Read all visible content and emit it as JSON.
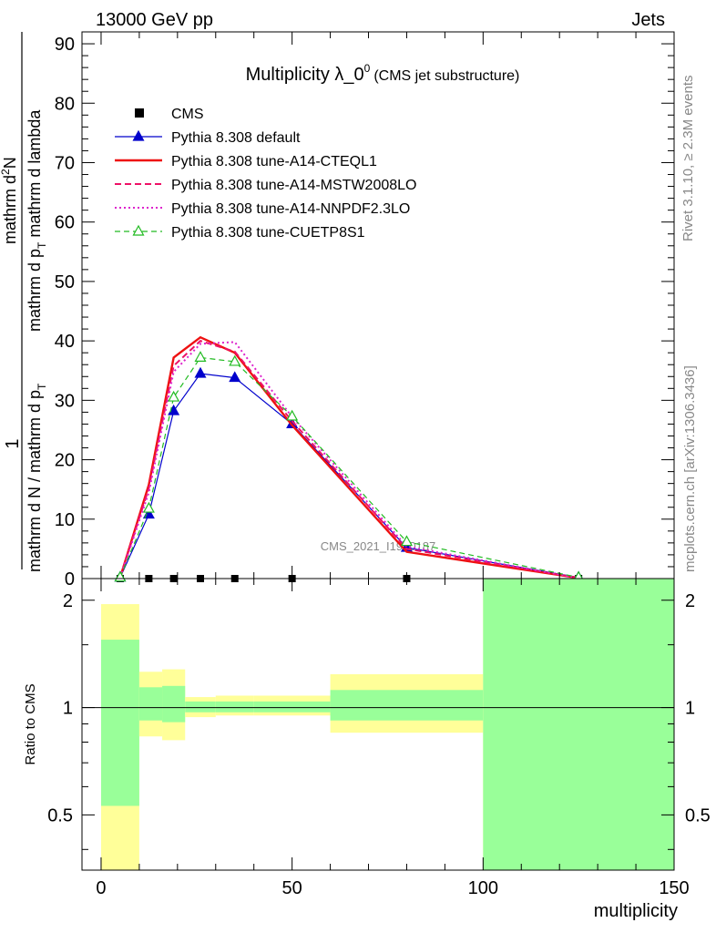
{
  "header": {
    "left": "13000 GeV pp",
    "right": "Jets"
  },
  "side_labels": {
    "rivet": "Rivet 3.1.10, ≥ 2.3M events",
    "mcplots": "mcplots.cern.ch [arXiv:1306.3436]"
  },
  "watermark": "CMS_2021_I1920187",
  "chart_data": [
    {
      "type": "line",
      "title": "Multiplicity λ_0",
      "title_sup": "0",
      "subtitle": "(CMS jet substructure)",
      "ylabel_top": "1",
      "ylabel_den": "mathrm d N / mathrm d p",
      "ylabel_den_sub": "T",
      "ylabel_den_tail": "mathrm d lambda",
      "ylabel_num": "mathrm d",
      "ylabel_num_sup": "2",
      "ylabel_num_tail": "N",
      "ylabel_right": "mathrm d p",
      "ylabel_right_sub": "T",
      "xlim": [
        -5,
        150
      ],
      "ylim": [
        0,
        92
      ],
      "yticks": [
        "0",
        "10",
        "20",
        "30",
        "40",
        "50",
        "60",
        "70",
        "80",
        "90"
      ],
      "series": [
        {
          "name": "CMS",
          "color": "#000000",
          "style": "marker-square",
          "x": [
            5,
            12.5,
            19,
            26,
            35,
            50,
            80,
            125
          ],
          "y": [
            0,
            0,
            0,
            0,
            0,
            0,
            0,
            0
          ]
        },
        {
          "name": "Pythia 8.308 default",
          "color": "#0000cc",
          "style": "solid-triangle",
          "x": [
            5,
            12.5,
            19,
            26,
            35,
            50,
            80,
            125
          ],
          "y": [
            0.2,
            10.8,
            28.2,
            34.5,
            33.8,
            26.0,
            5.2,
            0.2
          ]
        },
        {
          "name": "Pythia 8.308 tune-A14-CTEQL1",
          "color": "#ee1111",
          "style": "solid-thick",
          "x": [
            5,
            12.5,
            19,
            26,
            35,
            50,
            80,
            125
          ],
          "y": [
            0.2,
            15.8,
            37.2,
            40.6,
            38.0,
            25.8,
            4.5,
            0.1
          ]
        },
        {
          "name": "Pythia 8.308 tune-A14-MSTW2008LO",
          "color": "#ee1166",
          "style": "dashed",
          "x": [
            5,
            12.5,
            19,
            26,
            35,
            50,
            80,
            125
          ],
          "y": [
            0.2,
            15.2,
            35.8,
            40.0,
            38.2,
            26.5,
            5.0,
            0.1
          ]
        },
        {
          "name": "Pythia 8.308 tune-A14-NNPDF2.3LO",
          "color": "#dd22cc",
          "style": "dotted",
          "x": [
            5,
            12.5,
            19,
            26,
            35,
            50,
            80,
            125
          ],
          "y": [
            0.2,
            14.5,
            34.8,
            39.5,
            39.8,
            27.2,
            5.4,
            0.1
          ]
        },
        {
          "name": "Pythia 8.308 tune-CUETP8S1",
          "color": "#22bb22",
          "style": "dashed-open-triangle",
          "x": [
            5,
            12.5,
            19,
            26,
            35,
            50,
            80,
            125
          ],
          "y": [
            0.2,
            11.8,
            30.5,
            37.2,
            36.5,
            27.3,
            6.2,
            0.2
          ]
        }
      ]
    },
    {
      "type": "area",
      "ylabel": "Ratio to CMS",
      "xlabel": "multiplicity",
      "xlim": [
        -5,
        150
      ],
      "ylim": [
        0.35,
        2.3
      ],
      "xticks": [
        "0",
        "50",
        "100",
        "150"
      ],
      "yticks": [
        "0.5",
        "1",
        "2"
      ],
      "bands": [
        {
          "x0": 0,
          "x1": 10,
          "y_lo": 0.35,
          "y_hi": 1.95,
          "g_lo": 0.53,
          "g_hi": 1.55
        },
        {
          "x0": 10,
          "x1": 16,
          "y_lo": 0.83,
          "y_hi": 1.26,
          "g_lo": 0.92,
          "g_hi": 1.14
        },
        {
          "x0": 16,
          "x1": 22,
          "y_lo": 0.81,
          "y_hi": 1.28,
          "g_lo": 0.91,
          "g_hi": 1.15
        },
        {
          "x0": 22,
          "x1": 30,
          "y_lo": 0.94,
          "y_hi": 1.07,
          "g_lo": 0.97,
          "g_hi": 1.04
        },
        {
          "x0": 30,
          "x1": 40,
          "y_lo": 0.95,
          "y_hi": 1.08,
          "g_lo": 0.97,
          "g_hi": 1.04
        },
        {
          "x0": 40,
          "x1": 60,
          "y_lo": 0.95,
          "y_hi": 1.08,
          "g_lo": 0.97,
          "g_hi": 1.04
        },
        {
          "x0": 60,
          "x1": 100,
          "y_lo": 0.85,
          "y_hi": 1.24,
          "g_lo": 0.92,
          "g_hi": 1.12
        },
        {
          "x0": 100,
          "x1": 150,
          "y_lo": 0.35,
          "y_hi": 2.3,
          "g_lo": 0.35,
          "g_hi": 2.3
        }
      ],
      "colors": {
        "outer": "#ffff99",
        "inner": "#99ff99"
      }
    }
  ]
}
